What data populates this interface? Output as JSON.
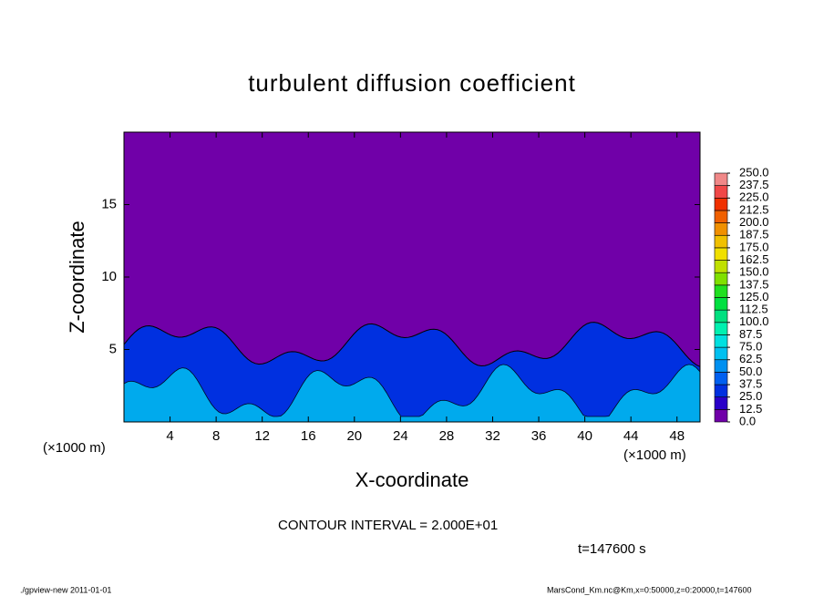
{
  "chart_data": {
    "type": "contour",
    "title": "turbulent diffusion coefficient",
    "x_label": "X-coordinate",
    "y_label": "Z-coordinate",
    "x_unit": "(×1000 m)",
    "xlim": [
      0,
      50
    ],
    "ylim": [
      0,
      20
    ],
    "xticks": [
      4,
      8,
      12,
      16,
      20,
      24,
      28,
      32,
      36,
      40,
      44,
      48
    ],
    "yticks": [
      5,
      10,
      15
    ],
    "colorbar_ticks": [
      {
        "value": 0,
        "label": "0.0"
      },
      {
        "value": 12.5,
        "label": "12.5"
      },
      {
        "value": 25,
        "label": "25.0"
      },
      {
        "value": 37.5,
        "label": "37.5"
      },
      {
        "value": 50,
        "label": "50.0"
      },
      {
        "value": 62.5,
        "label": "62.5"
      },
      {
        "value": 75,
        "label": "75.0"
      },
      {
        "value": 87.5,
        "label": "87.5"
      },
      {
        "value": 100,
        "label": "100.0"
      },
      {
        "value": 112.5,
        "label": "112.5"
      },
      {
        "value": 125,
        "label": "125.0"
      },
      {
        "value": 137.5,
        "label": "137.5"
      },
      {
        "value": 150,
        "label": "150.0"
      },
      {
        "value": 162.5,
        "label": "162.5"
      },
      {
        "value": 175,
        "label": "175.0"
      },
      {
        "value": 187.5,
        "label": "187.5"
      },
      {
        "value": 200,
        "label": "200.0"
      },
      {
        "value": 212.5,
        "label": "212.5"
      },
      {
        "value": 225,
        "label": "225.0"
      },
      {
        "value": 237.5,
        "label": "237.5"
      },
      {
        "value": 250,
        "label": "250.0"
      }
    ],
    "colors": [
      "#7000a8",
      "#2a00c8",
      "#0030e0",
      "#0060f0",
      "#0090f0",
      "#00c0f0",
      "#00e0e0",
      "#00f0b0",
      "#00e080",
      "#00e040",
      "#20e020",
      "#80e000",
      "#c0e000",
      "#f0e000",
      "#f0c000",
      "#f09000",
      "#f06000",
      "#f03000",
      "#f04848",
      "#f08888"
    ],
    "contour_interval": "CONTOUR INTERVAL = 2.000E+01",
    "time_label": "t=147600 s",
    "footer_left": "./gpview-new  2011-01-01",
    "footer_right": "MarsCond_Km.nc@Km,x=0:50000,z=0:20000,t=147600"
  }
}
